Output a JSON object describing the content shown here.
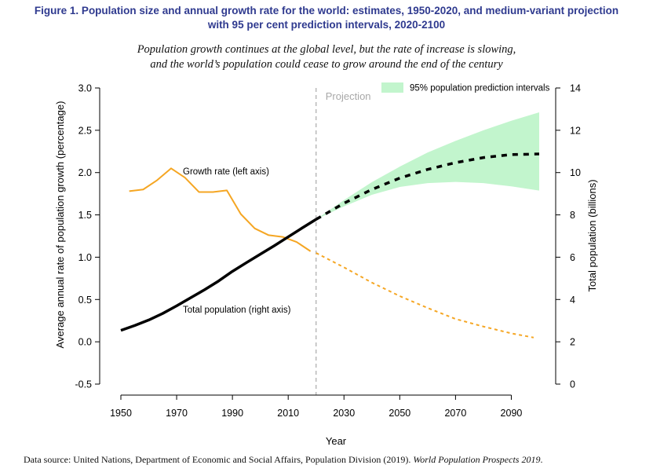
{
  "figure": {
    "title_line1": "Figure 1. Population size and annual growth rate for the world: estimates, 1950-2020, and medium-variant projection",
    "title_line2": "with 95 per cent prediction intervals, 2020-2100",
    "subtitle_line1": "Population growth continues at the global level, but the rate of increase is slowing,",
    "subtitle_line2": "and the world’s population could cease to grow around the end of the century",
    "source_plain": "Data source: United Nations, Department of Economic and Social Affairs, Population Division (2019). ",
    "source_italic": "World Population Prospects 2019",
    "source_end": "."
  },
  "chart_data": {
    "type": "line",
    "xlabel": "Year",
    "ylabel_left": "Average annual rate of population growth (percentage)",
    "ylabel_right": "Total population (billions)",
    "xlim": [
      1950,
      2100
    ],
    "ylim_left": [
      -0.5,
      3.0
    ],
    "ylim_right": [
      0,
      14
    ],
    "x_ticks": [
      "1950",
      "1970",
      "1990",
      "2010",
      "2030",
      "2050",
      "2070",
      "2090"
    ],
    "y_ticks_left": [
      "-0.5",
      "0.0",
      "0.5",
      "1.0",
      "1.5",
      "2.0",
      "2.5",
      "3.0"
    ],
    "y_ticks_right": [
      "0",
      "2",
      "4",
      "6",
      "8",
      "10",
      "12",
      "14"
    ],
    "projection_start": 2020,
    "projection_label": "Projection",
    "legend": {
      "label": "95% population prediction intervals",
      "position": "top-right",
      "color": "#c2f5cd"
    },
    "colors": {
      "growth": "#f5a623",
      "population": "#000000",
      "interval": "#c2f5cd",
      "projection_line": "#aaaaaa",
      "title": "#2f3a8f"
    },
    "annotations": {
      "growth_label": "Growth rate (left axis)",
      "population_label": "Total population (right axis)"
    },
    "series": [
      {
        "name": "Growth rate (left axis)",
        "axis": "left",
        "segment": "estimate",
        "x": [
          1953,
          1958,
          1963,
          1968,
          1973,
          1978,
          1983,
          1988,
          1993,
          1998,
          2003,
          2008,
          2013,
          2018
        ],
        "values": [
          1.78,
          1.8,
          1.91,
          2.05,
          1.94,
          1.77,
          1.77,
          1.79,
          1.51,
          1.34,
          1.26,
          1.24,
          1.18,
          1.07
        ]
      },
      {
        "name": "Growth rate (left axis)",
        "axis": "left",
        "segment": "projection",
        "x": [
          2020,
          2030,
          2040,
          2050,
          2060,
          2070,
          2080,
          2090,
          2098
        ],
        "values": [
          1.05,
          0.88,
          0.7,
          0.54,
          0.4,
          0.27,
          0.18,
          0.1,
          0.05
        ]
      },
      {
        "name": "Total population (right axis)",
        "axis": "right",
        "segment": "estimate",
        "x": [
          1950,
          1955,
          1960,
          1965,
          1970,
          1975,
          1980,
          1985,
          1990,
          1995,
          2000,
          2005,
          2010,
          2015,
          2020
        ],
        "values": [
          2.54,
          2.77,
          3.03,
          3.34,
          3.7,
          4.08,
          4.46,
          4.87,
          5.33,
          5.74,
          6.14,
          6.54,
          6.96,
          7.38,
          7.79
        ]
      },
      {
        "name": "Total population (right axis)",
        "axis": "right",
        "segment": "projection",
        "x": [
          2020,
          2030,
          2040,
          2050,
          2060,
          2070,
          2080,
          2090,
          2100
        ],
        "values": [
          7.79,
          8.55,
          9.2,
          9.74,
          10.15,
          10.47,
          10.71,
          10.85,
          10.88
        ]
      }
    ],
    "interval": {
      "axis": "right",
      "x": [
        2020,
        2030,
        2040,
        2050,
        2060,
        2070,
        2080,
        2090,
        2100
      ],
      "lower": [
        7.79,
        8.4,
        8.95,
        9.32,
        9.5,
        9.56,
        9.5,
        9.35,
        9.15
      ],
      "upper": [
        7.79,
        8.7,
        9.55,
        10.28,
        10.95,
        11.5,
        12.0,
        12.45,
        12.85
      ]
    }
  }
}
